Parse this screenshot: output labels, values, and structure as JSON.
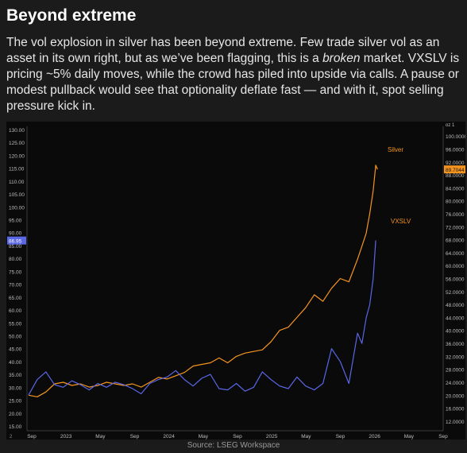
{
  "heading": "Beyond extreme",
  "paragraph": {
    "part1": "The vol explosion in silver has been beyond extreme. Few trade silver vol as an asset in its own right, but as we’ve been flagging, this is a ",
    "emphasis": "broken",
    "part2": " market. VXSLV is pricing ~5% daily moves, while the crowd has piled into upside via calls. A pause or modest pullback would see that optionality deflate fast — and with it, spot selling pressure kick in."
  },
  "source": "Source: LSEG Workspace",
  "colors": {
    "silver": "#f5951f",
    "vxslv": "#5a67e6",
    "background": "#0a0a0a",
    "page": "#1b1b1b"
  },
  "chart_data": {
    "type": "line",
    "x_ticks": [
      "Sep",
      "2023",
      "May",
      "Sep",
      "2024",
      "May",
      "Sep",
      "2025",
      "May",
      "Sep",
      "2026",
      "May",
      "Sep"
    ],
    "left_axis": {
      "ticks": [
        "15.00",
        "20.00",
        "25.00",
        "30.00",
        "35.00",
        "40.00",
        "45.00",
        "50.00",
        "55.00",
        "60.00",
        "65.00",
        "70.00",
        "75.00",
        "80.00",
        "85.00",
        "90.00",
        "95.00",
        "100.00",
        "105.00",
        "110.00",
        "115.00",
        "120.00",
        "125.00",
        "130.00"
      ],
      "range": [
        15,
        130
      ]
    },
    "right_axis": {
      "unit_label": "oz 1",
      "ticks": [
        "12.0000",
        "16.0000",
        "20.0000",
        "24.0000",
        "28.0000",
        "32.0000",
        "36.0000",
        "40.0000",
        "44.0000",
        "48.0000",
        "52.0000",
        "56.0000",
        "60.0000",
        "64.0000",
        "68.0000",
        "72.0000",
        "76.0000",
        "80.0000",
        "84.0000",
        "88.0000",
        "92.0000",
        "96.0000",
        "100.0000"
      ],
      "range": [
        10.5,
        102
      ]
    },
    "series": [
      {
        "name": "Silver",
        "axis": "right",
        "last_value_label": "89.7044",
        "points": [
          [
            0,
            20.0
          ],
          [
            1,
            19.5
          ],
          [
            2,
            21.0
          ],
          [
            3,
            23.5
          ],
          [
            4,
            24.0
          ],
          [
            5,
            23.0
          ],
          [
            6,
            23.5
          ],
          [
            7,
            22.5
          ],
          [
            8,
            23.0
          ],
          [
            9,
            24.0
          ],
          [
            10,
            23.5
          ],
          [
            11,
            23.0
          ],
          [
            12,
            23.5
          ],
          [
            13,
            22.5
          ],
          [
            14,
            24.0
          ],
          [
            15,
            25.5
          ],
          [
            16,
            25.0
          ],
          [
            17,
            26.0
          ],
          [
            18,
            27.0
          ],
          [
            19,
            29.0
          ],
          [
            20,
            29.5
          ],
          [
            21,
            30.0
          ],
          [
            22,
            31.5
          ],
          [
            23,
            30.0
          ],
          [
            24,
            32.0
          ],
          [
            25,
            33.0
          ],
          [
            26,
            33.5
          ],
          [
            27,
            34.0
          ],
          [
            28,
            36.5
          ],
          [
            29,
            40.0
          ],
          [
            30,
            41.0
          ],
          [
            31,
            44.0
          ],
          [
            32,
            47.0
          ],
          [
            33,
            51.0
          ],
          [
            34,
            49.0
          ],
          [
            35,
            53.0
          ],
          [
            36,
            56.0
          ],
          [
            37,
            55.0
          ],
          [
            38,
            62.0
          ],
          [
            38.5,
            66.0
          ],
          [
            39,
            70.0
          ],
          [
            39.4,
            76.0
          ],
          [
            39.8,
            83.0
          ],
          [
            40.1,
            91.0
          ],
          [
            40.3,
            89.7
          ]
        ]
      },
      {
        "name": "VXSLV",
        "axis": "left",
        "last_value_label": "86.95",
        "points": [
          [
            0,
            27.0
          ],
          [
            1,
            33.0
          ],
          [
            2,
            36.0
          ],
          [
            3,
            31.0
          ],
          [
            4,
            30.0
          ],
          [
            5,
            32.5
          ],
          [
            6,
            31.0
          ],
          [
            7,
            29.0
          ],
          [
            8,
            31.5
          ],
          [
            9,
            30.0
          ],
          [
            10,
            32.0
          ],
          [
            11,
            31.0
          ],
          [
            12,
            29.5
          ],
          [
            13,
            27.5
          ],
          [
            14,
            31.5
          ],
          [
            15,
            33.0
          ],
          [
            16,
            34.0
          ],
          [
            17,
            36.5
          ],
          [
            18,
            33.0
          ],
          [
            19,
            30.5
          ],
          [
            20,
            33.5
          ],
          [
            21,
            35.0
          ],
          [
            22,
            29.5
          ],
          [
            23,
            29.0
          ],
          [
            24,
            31.5
          ],
          [
            25,
            28.5
          ],
          [
            26,
            30.0
          ],
          [
            27,
            36.0
          ],
          [
            28,
            33.0
          ],
          [
            29,
            30.5
          ],
          [
            30,
            29.5
          ],
          [
            31,
            34.0
          ],
          [
            32,
            30.5
          ],
          [
            33,
            29.0
          ],
          [
            34,
            31.5
          ],
          [
            35,
            45.0
          ],
          [
            36,
            40.0
          ],
          [
            37,
            31.5
          ],
          [
            38,
            51.0
          ],
          [
            38.5,
            47.0
          ],
          [
            39,
            57.0
          ],
          [
            39.4,
            62.0
          ],
          [
            39.8,
            72.0
          ],
          [
            40.1,
            86.95
          ]
        ]
      }
    ],
    "series_labels": {
      "silver": "Silver",
      "vxslv": "VXSLV"
    },
    "corner_label": "2",
    "grid": false
  }
}
